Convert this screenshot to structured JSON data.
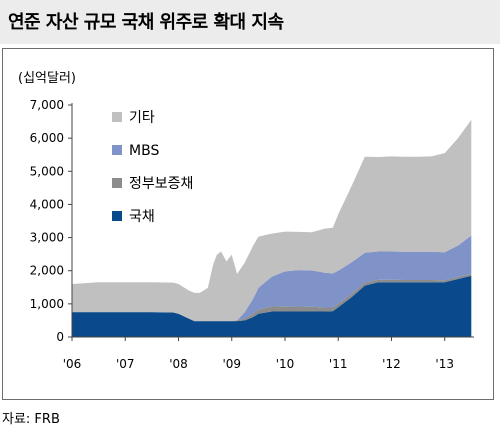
{
  "header": {
    "title": "연준 자산 규모 국채 위주로 확대 지속"
  },
  "footer": {
    "source": "자료: FRB"
  },
  "chart_data": {
    "type": "area",
    "stacked": true,
    "unit_label": "(십억달러)",
    "title": "",
    "xlabel": "",
    "ylabel": "",
    "ylim": [
      0,
      7000
    ],
    "xlim": [
      2006.0,
      2013.55
    ],
    "yticks": [
      0,
      1000,
      2000,
      3000,
      4000,
      5000,
      6000,
      7000
    ],
    "ytick_labels": [
      "0",
      "1,000",
      "2,000",
      "3,000",
      "4,000",
      "5,000",
      "6,000",
      "7,000"
    ],
    "xticks": [
      2006,
      2007,
      2008,
      2009,
      2010,
      2011,
      2012,
      2013
    ],
    "xtick_labels": [
      "'06",
      "'07",
      "'08",
      "'09",
      "'10",
      "'11",
      "'12",
      "'13"
    ],
    "grid": false,
    "legend_position": "top-left",
    "x": [
      2006.0,
      2006.5,
      2007.0,
      2007.5,
      2007.9,
      2008.0,
      2008.2,
      2008.3,
      2008.4,
      2008.55,
      2008.65,
      2008.72,
      2008.8,
      2008.9,
      2009.0,
      2009.1,
      2009.25,
      2009.4,
      2009.5,
      2009.75,
      2010.0,
      2010.25,
      2010.5,
      2010.75,
      2010.9,
      2011.0,
      2011.25,
      2011.5,
      2011.75,
      2012.0,
      2012.25,
      2012.5,
      2012.75,
      2013.0,
      2013.25,
      2013.5
    ],
    "series": [
      {
        "name": "국채",
        "color": "#0a4a8c",
        "values": [
          750,
          750,
          750,
          750,
          740,
          700,
          550,
          480,
          480,
          480,
          480,
          480,
          480,
          480,
          480,
          480,
          500,
          600,
          700,
          770,
          770,
          770,
          770,
          770,
          780,
          900,
          1200,
          1550,
          1650,
          1650,
          1650,
          1650,
          1650,
          1650,
          1750,
          1850
        ]
      },
      {
        "name": "정부보증채",
        "color": "#8c8c8c",
        "values": [
          0,
          0,
          0,
          0,
          0,
          0,
          0,
          0,
          0,
          0,
          0,
          0,
          0,
          0,
          0,
          20,
          60,
          100,
          130,
          150,
          160,
          150,
          140,
          120,
          110,
          100,
          100,
          90,
          80,
          80,
          70,
          70,
          70,
          60,
          60,
          60
        ]
      },
      {
        "name": "MBS",
        "color": "#7f93c8",
        "values": [
          0,
          0,
          0,
          0,
          0,
          0,
          0,
          0,
          0,
          0,
          0,
          0,
          0,
          0,
          0,
          0,
          200,
          450,
          650,
          900,
          1050,
          1100,
          1100,
          1050,
          1030,
          1000,
          950,
          900,
          850,
          850,
          850,
          850,
          850,
          850,
          950,
          1150
        ]
      },
      {
        "name": "기타",
        "color": "#c0c0c0",
        "values": [
          850,
          900,
          900,
          900,
          900,
          900,
          850,
          850,
          850,
          1000,
          1700,
          2000,
          2100,
          1800,
          2000,
          1400,
          1500,
          1600,
          1550,
          1300,
          1200,
          1150,
          1150,
          1330,
          1380,
          1700,
          2300,
          2900,
          2850,
          2870,
          2870,
          2870,
          2880,
          2990,
          3240,
          3490
        ]
      }
    ]
  }
}
